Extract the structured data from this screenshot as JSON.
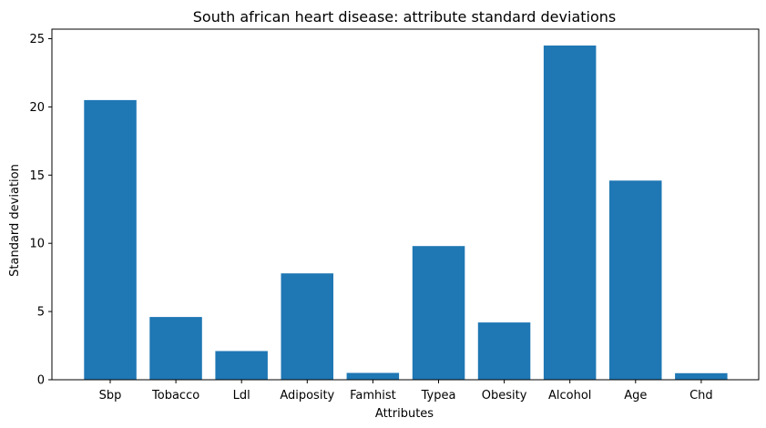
{
  "chart_data": {
    "type": "bar",
    "title": "South african heart disease: attribute standard deviations",
    "xlabel": "Attributes",
    "ylabel": "Standard deviation",
    "categories": [
      "Sbp",
      "Tobacco",
      "Ldl",
      "Adiposity",
      "Famhist",
      "Typea",
      "Obesity",
      "Alcohol",
      "Age",
      "Chd"
    ],
    "values": [
      20.5,
      4.6,
      2.1,
      7.8,
      0.5,
      9.8,
      4.2,
      24.5,
      14.6,
      0.48
    ],
    "yticks": [
      0,
      5,
      10,
      15,
      20,
      25
    ],
    "ylim": [
      0,
      25.7
    ],
    "grid": false,
    "colors": {
      "bar": "#1f77b4",
      "axis": "#000000"
    }
  }
}
